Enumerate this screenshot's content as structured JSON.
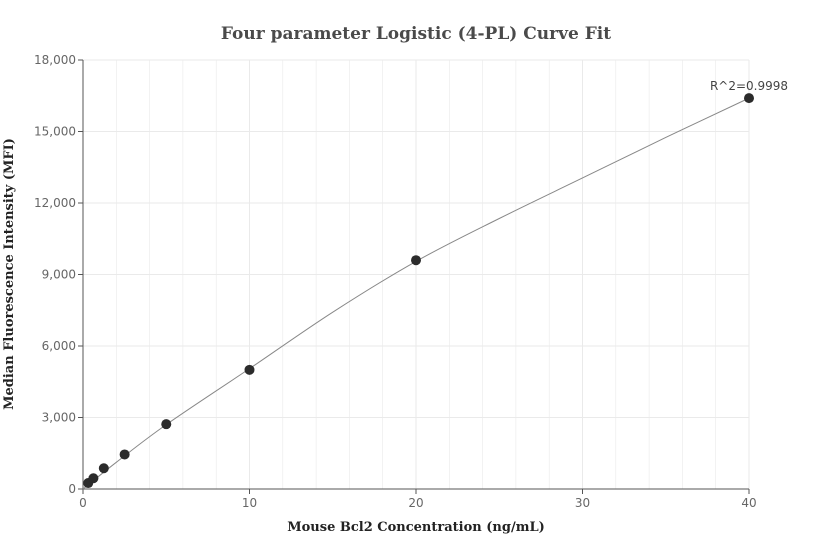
{
  "chart_data": {
    "type": "scatter",
    "title": "Four parameter Logistic (4-PL) Curve Fit",
    "xlabel": "Mouse Bcl2 Concentration (ng/mL)",
    "ylabel": "Median Fluorescence Intensity (MFI)",
    "xlim": [
      0,
      40
    ],
    "ylim": [
      0,
      18000
    ],
    "x_ticks": [
      0,
      10,
      20,
      30,
      40
    ],
    "x_tick_labels": [
      "0",
      "10",
      "20",
      "30",
      "40"
    ],
    "y_ticks": [
      0,
      3000,
      6000,
      9000,
      12000,
      15000,
      18000
    ],
    "y_tick_labels": [
      "0",
      "3,000",
      "6,000",
      "9,000",
      "12,000",
      "15,000",
      "18,000"
    ],
    "grid": true,
    "points": {
      "x": [
        0.3125,
        0.625,
        1.25,
        2.5,
        5,
        10,
        20,
        40
      ],
      "y": [
        250,
        450,
        870,
        1450,
        2720,
        5000,
        9600,
        16400
      ]
    },
    "fit_curve": {
      "x": [
        0,
        2,
        5,
        10,
        15,
        20,
        25,
        30,
        35,
        40
      ],
      "y": [
        0,
        1120,
        2700,
        5050,
        7420,
        9550,
        11350,
        13050,
        14750,
        16400
      ]
    },
    "annotation": "R^2=0.9998",
    "colors": {
      "points": "#2b2b2b",
      "curve": "#888888",
      "grid": "#eaeaea",
      "axis": "#555555"
    }
  }
}
